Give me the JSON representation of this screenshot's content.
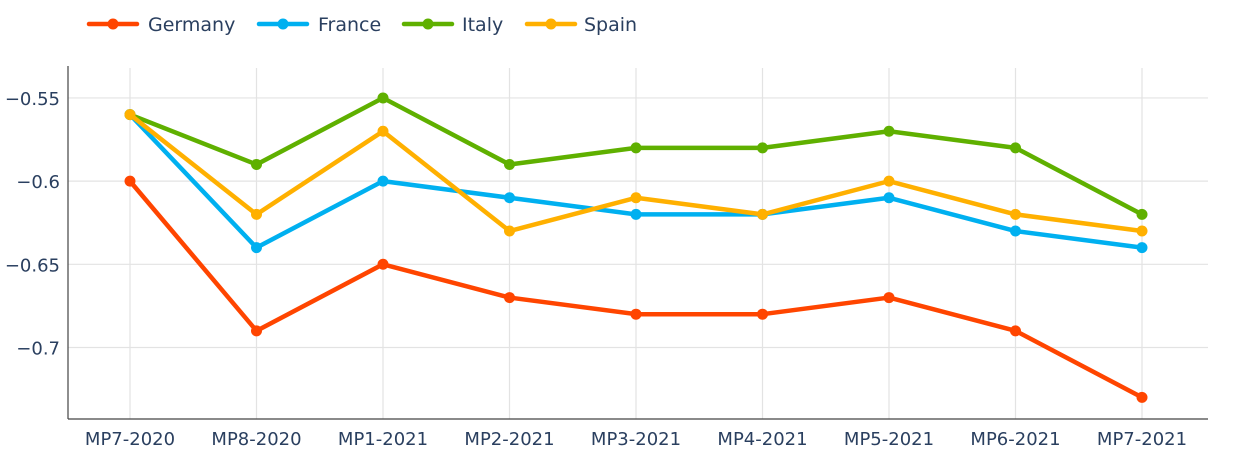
{
  "chart_data": {
    "type": "line",
    "title": "",
    "xlabel": "",
    "ylabel": "",
    "categories": [
      "MP7-2020",
      "MP8-2020",
      "MP1-2021",
      "MP2-2021",
      "MP3-2021",
      "MP4-2021",
      "MP5-2021",
      "MP6-2021",
      "MP7-2021"
    ],
    "y_ticks": [
      {
        "value": -0.55,
        "label": "−0.55"
      },
      {
        "value": -0.6,
        "label": "−0.6"
      },
      {
        "value": -0.65,
        "label": "−0.65"
      },
      {
        "value": -0.7,
        "label": "−0.7"
      }
    ],
    "ylim": [
      -0.743,
      -0.532
    ],
    "grid": true,
    "legend_position": "top-left",
    "series": [
      {
        "name": "Germany",
        "color": "#ff4500",
        "values": [
          -0.6,
          -0.69,
          -0.65,
          -0.67,
          -0.68,
          -0.68,
          -0.67,
          -0.69,
          -0.73
        ]
      },
      {
        "name": "France",
        "color": "#00b0f0",
        "values": [
          -0.56,
          -0.64,
          -0.6,
          -0.61,
          -0.62,
          -0.62,
          -0.61,
          -0.63,
          -0.64
        ]
      },
      {
        "name": "Italy",
        "color": "#5fb000",
        "values": [
          -0.56,
          -0.59,
          -0.55,
          -0.59,
          -0.58,
          -0.58,
          -0.57,
          -0.58,
          -0.62
        ]
      },
      {
        "name": "Spain",
        "color": "#ffb000",
        "values": [
          -0.56,
          -0.62,
          -0.57,
          -0.63,
          -0.61,
          -0.62,
          -0.6,
          -0.62,
          -0.63
        ]
      }
    ]
  }
}
